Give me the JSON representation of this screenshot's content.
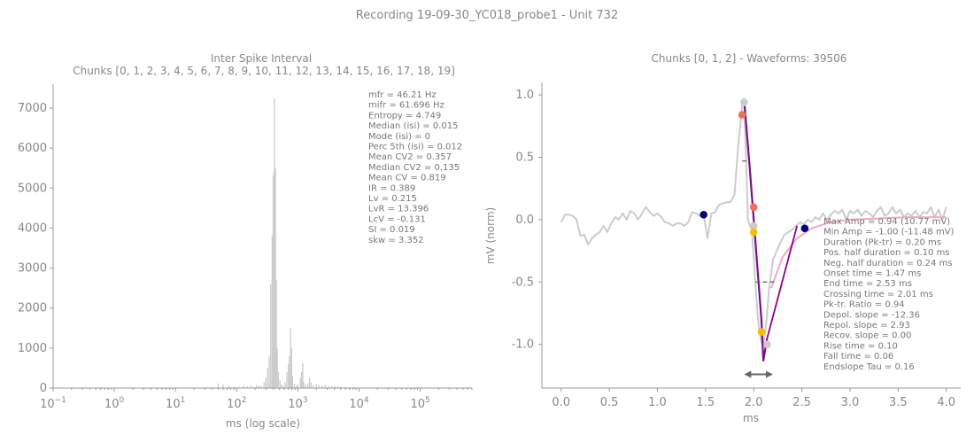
{
  "suptitle": "Recording 19-09-30_YC018_probe1 - Unit 732",
  "chart_data": [
    {
      "type": "bar",
      "title": "Inter Spike Interval",
      "subtitle": "Chunks [0, 1, 2, 3, 4, 5, 6, 7, 8, 9, 10, 11, 12, 13, 14, 15, 16, 17, 18, 19]",
      "xlabel": "ms (log scale)",
      "ylabel": "",
      "xscale": "log",
      "xlim": [
        0.1,
        700000
      ],
      "ylim": [
        0,
        7600
      ],
      "x_ticks": [
        "10^-1",
        "10^0",
        "10^1",
        "10^2",
        "10^3",
        "10^4",
        "10^5"
      ],
      "y_ticks": [
        "0",
        "1000",
        "2000",
        "3000",
        "4000",
        "5000",
        "6000",
        "7000"
      ],
      "bar_color": "#cccccc",
      "bins": [
        {
          "x": 50,
          "value": 120
        },
        {
          "x": 60,
          "value": 90
        },
        {
          "x": 75,
          "value": 60
        },
        {
          "x": 90,
          "value": 40
        },
        {
          "x": 110,
          "value": 30
        },
        {
          "x": 130,
          "value": 60
        },
        {
          "x": 150,
          "value": 40
        },
        {
          "x": 170,
          "value": 60
        },
        {
          "x": 190,
          "value": 40
        },
        {
          "x": 210,
          "value": 80
        },
        {
          "x": 230,
          "value": 60
        },
        {
          "x": 250,
          "value": 70
        },
        {
          "x": 280,
          "value": 150
        },
        {
          "x": 300,
          "value": 250
        },
        {
          "x": 320,
          "value": 500
        },
        {
          "x": 340,
          "value": 800
        },
        {
          "x": 360,
          "value": 2600
        },
        {
          "x": 380,
          "value": 3800
        },
        {
          "x": 395,
          "value": 5300
        },
        {
          "x": 405,
          "value": 5400
        },
        {
          "x": 415,
          "value": 7250
        },
        {
          "x": 430,
          "value": 5500
        },
        {
          "x": 445,
          "value": 2700
        },
        {
          "x": 460,
          "value": 1000
        },
        {
          "x": 480,
          "value": 400
        },
        {
          "x": 510,
          "value": 200
        },
        {
          "x": 540,
          "value": 100
        },
        {
          "x": 580,
          "value": 60
        },
        {
          "x": 620,
          "value": 150
        },
        {
          "x": 660,
          "value": 400
        },
        {
          "x": 700,
          "value": 600
        },
        {
          "x": 730,
          "value": 800
        },
        {
          "x": 760,
          "value": 1500
        },
        {
          "x": 790,
          "value": 1000
        },
        {
          "x": 820,
          "value": 300
        },
        {
          "x": 880,
          "value": 100
        },
        {
          "x": 950,
          "value": 60
        },
        {
          "x": 1000,
          "value": 100
        },
        {
          "x": 1100,
          "value": 250
        },
        {
          "x": 1150,
          "value": 400
        },
        {
          "x": 1200,
          "value": 620
        },
        {
          "x": 1250,
          "value": 150
        },
        {
          "x": 1350,
          "value": 80
        },
        {
          "x": 1450,
          "value": 120
        },
        {
          "x": 1550,
          "value": 250
        },
        {
          "x": 1650,
          "value": 150
        },
        {
          "x": 1800,
          "value": 80
        },
        {
          "x": 2000,
          "value": 100
        },
        {
          "x": 2200,
          "value": 90
        },
        {
          "x": 2500,
          "value": 60
        },
        {
          "x": 2800,
          "value": 80
        },
        {
          "x": 3200,
          "value": 60
        },
        {
          "x": 3600,
          "value": 50
        },
        {
          "x": 4000,
          "value": 40
        },
        {
          "x": 4500,
          "value": 50
        },
        {
          "x": 5000,
          "value": 40
        },
        {
          "x": 6000,
          "value": 30
        },
        {
          "x": 7000,
          "value": 20
        },
        {
          "x": 8500,
          "value": 20
        },
        {
          "x": 10000,
          "value": 10
        }
      ],
      "stats_text": [
        "mfr = 46.21 Hz",
        "mifr = 61.696 Hz",
        "Entropy = 4.749",
        "Median (isi) = 0.015",
        "Mode (isi) = 0",
        "Perc 5th (isi) = 0.012",
        "Mean CV2 = 0.357",
        "Median CV2 = 0.135",
        "Mean CV = 0.819",
        "IR = 0.389",
        "Lv = 0.215",
        "LvR = 13.396",
        "LcV = -0.131",
        "SI = 0.019",
        "skw = 3.352"
      ]
    },
    {
      "type": "line",
      "title": "Chunks [0, 1, 2] - Waveforms: 39506",
      "xlabel": "ms",
      "ylabel": "mV (norm)",
      "xlim": [
        -0.2,
        4.15
      ],
      "ylim": [
        -1.35,
        1.1
      ],
      "x_ticks": [
        "0.0",
        "0.5",
        "1.0",
        "1.5",
        "2.0",
        "2.5",
        "3.0",
        "3.5",
        "4.0"
      ],
      "y_ticks": [
        "-1.0",
        "-0.5",
        "0.0",
        "0.5",
        "1.0"
      ],
      "series": [
        {
          "color": "#cccccc",
          "x": [
            0,
            0.04,
            0.08,
            0.12,
            0.16,
            0.2,
            0.24,
            0.28,
            0.32,
            0.36,
            0.4,
            0.44,
            0.48,
            0.52,
            0.56,
            0.6,
            0.64,
            0.68,
            0.72,
            0.76,
            0.8,
            0.84,
            0.88,
            0.92,
            0.96,
            1.0,
            1.04,
            1.08,
            1.12,
            1.16,
            1.2,
            1.24,
            1.28,
            1.32,
            1.36,
            1.4,
            1.44,
            1.48,
            1.52,
            1.56,
            1.6,
            1.64,
            1.68,
            1.72,
            1.76,
            1.8,
            1.84,
            1.86,
            1.88,
            1.9,
            1.92,
            1.94,
            1.96,
            1.98,
            2.0,
            2.02,
            2.04,
            2.06,
            2.08,
            2.1,
            2.12,
            2.14,
            2.16,
            2.2,
            2.24,
            2.28,
            2.32,
            2.36,
            2.4,
            2.44,
            2.48,
            2.52,
            2.56,
            2.6,
            2.64,
            2.68,
            2.72,
            2.76,
            2.8,
            2.84,
            2.88,
            2.92,
            2.96,
            3.0,
            3.04,
            3.08,
            3.12,
            3.16,
            3.2,
            3.24,
            3.28,
            3.32,
            3.36,
            3.4,
            3.44,
            3.48,
            3.52,
            3.56,
            3.6,
            3.64,
            3.68,
            3.72,
            3.76,
            3.8,
            3.84,
            3.88,
            3.92,
            3.96,
            4.0
          ],
          "y": [
            -0.02,
            0.04,
            0.04,
            0.03,
            0.0,
            -0.13,
            -0.12,
            -0.2,
            -0.15,
            -0.12,
            -0.1,
            -0.05,
            -0.1,
            -0.03,
            0.02,
            0.0,
            0.05,
            0.0,
            0.07,
            0.05,
            0.0,
            0.05,
            0.1,
            0.06,
            0.03,
            0.05,
            0.02,
            -0.02,
            -0.03,
            -0.05,
            -0.03,
            -0.03,
            -0.05,
            -0.02,
            0.06,
            0.05,
            0.03,
            0.04,
            -0.15,
            0.05,
            0.06,
            0.12,
            0.13,
            0.14,
            0.14,
            0.2,
            0.6,
            0.75,
            0.93,
            0.95,
            0.5,
            0.0,
            -0.05,
            -0.08,
            -0.3,
            -0.55,
            -0.75,
            -0.9,
            -0.98,
            -1.0,
            -0.9,
            -0.75,
            -0.55,
            -0.32,
            -0.25,
            -0.18,
            -0.12,
            -0.1,
            -0.08,
            -0.05,
            -0.02,
            -0.04,
            0.0,
            -0.02,
            0.02,
            0.0,
            0.05,
            0.0,
            0.04,
            0.07,
            0.05,
            0.08,
            0.0,
            0.07,
            0.05,
            0.08,
            0.03,
            0.07,
            0.05,
            0.02,
            0.07,
            0.1,
            0.03,
            0.05,
            0.1,
            0.05,
            0.08,
            0.02,
            0.05,
            0.03,
            0.07,
            0.02,
            0.06,
            0.05,
            0.1,
            0.02,
            0.08,
            0.0,
            0.1
          ]
        },
        {
          "color": "#f4a9c0",
          "x": [
            2.18,
            2.3,
            2.45,
            2.6,
            2.8,
            3.0,
            3.3,
            3.6,
            4.0
          ],
          "y": [
            -0.55,
            -0.3,
            -0.15,
            -0.07,
            -0.02,
            0.0,
            0.01,
            0.02,
            0.02
          ]
        },
        {
          "color": "#7b0f8c",
          "x": [
            1.9,
            1.96,
            2.02,
            2.08,
            2.1,
            2.14
          ],
          "y": [
            0.97,
            0.4,
            -0.2,
            -0.8,
            -1.13,
            -0.95
          ]
        }
      ],
      "markers": [
        {
          "x": 1.48,
          "y": 0.04,
          "color": "#00007a"
        },
        {
          "x": 2.53,
          "y": -0.07,
          "color": "#00007a"
        },
        {
          "x": 1.9,
          "y": 0.94,
          "color": "#cccccc"
        },
        {
          "x": 1.88,
          "y": 0.84,
          "color": "#f0705a"
        },
        {
          "x": 2.0,
          "y": 0.1,
          "color": "#f0705a"
        },
        {
          "x": 2.0,
          "y": -0.05,
          "color": "#cccccc"
        },
        {
          "x": 2.0,
          "y": -0.1,
          "color": "#f5c000"
        },
        {
          "x": 2.08,
          "y": -0.9,
          "color": "#f5c000"
        },
        {
          "x": 2.14,
          "y": -1.0,
          "color": "#cccccc"
        }
      ],
      "slope_lines": [
        {
          "x": [
            2.14,
            2.45
          ],
          "y": [
            -0.95,
            -0.05
          ],
          "color": "#8a008a"
        }
      ],
      "dashes": [
        {
          "x": [
            1.88,
            1.95
          ],
          "y": [
            0.47,
            0.47
          ]
        },
        {
          "x": [
            2.02,
            2.24
          ],
          "y": [
            -0.5,
            -0.5
          ]
        }
      ],
      "duration_arrow": {
        "x": [
          1.9,
          2.2
        ],
        "y": -1.24,
        "color": "#666666"
      },
      "stats_text": [
        "Max Amp = 0.94 (10.77 mV)",
        "Min Amp = -1.00 (-11.48 mV)",
        "Duration (Pk-tr) = 0.20 ms",
        "Pos. half duration = 0.10 ms",
        "Neg. half duration = 0.24 ms",
        "Onset time = 1.47 ms",
        "End time = 2.53 ms",
        "Crossing time = 2.01 ms",
        "Pk-tr. Ratio = 0.94",
        "Depol. slope = -12.36",
        "Repol. slope = 2.93",
        "Recov. slope = 0.00",
        "Rise time = 0.10",
        "Fall time = 0.06",
        "Endslope Tau = 0.16"
      ]
    }
  ]
}
